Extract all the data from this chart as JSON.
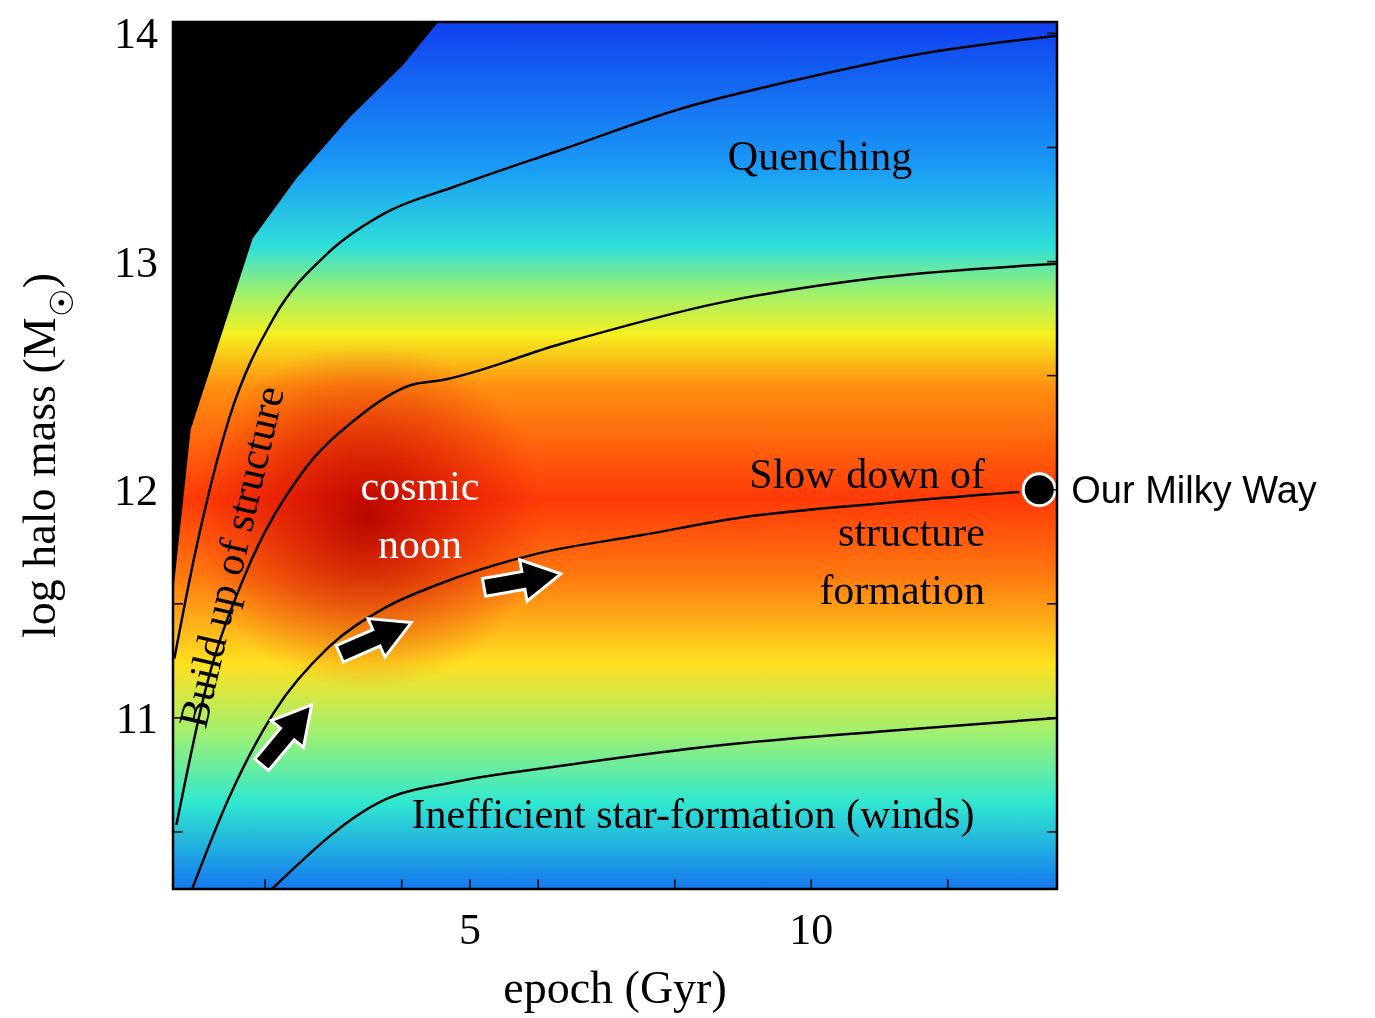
{
  "chart_data": {
    "type": "line",
    "xlabel": "epoch (Gyr)",
    "ylabel": "log halo mass (M$_{☉}$)",
    "xlim": [
      0.65,
      13.6
    ],
    "ylim": [
      10.25,
      14.05
    ],
    "xticks": [
      {
        "value": 2,
        "label": null
      },
      {
        "value": 4,
        "label": null
      },
      5,
      {
        "value": 6,
        "label": null
      },
      {
        "value": 8,
        "label": null
      },
      10,
      {
        "value": 12,
        "label": null
      }
    ],
    "yticks": [
      {
        "value": 10.5,
        "label": null
      },
      11,
      {
        "value": 11.5,
        "label": null
      },
      12,
      {
        "value": 12.5,
        "label": null
      },
      13,
      {
        "value": 13.5,
        "label": null
      },
      14
    ],
    "grid": false,
    "marker": "none",
    "line_style": "solid",
    "series": [
      {
        "color": "#000000",
        "x": [
          0.67,
          0.98,
          1.47,
          2.12,
          2.93,
          3.74,
          4.79,
          6.34,
          8.09,
          9.84,
          11.59,
          13.6
        ],
        "values": [
          11.26,
          11.73,
          12.31,
          12.75,
          13.04,
          13.21,
          13.33,
          13.49,
          13.67,
          13.8,
          13.91,
          13.99
        ]
      },
      {
        "color": "#000000",
        "x": [
          0.7,
          1.14,
          1.71,
          2.53,
          3.33,
          4.15,
          4.58,
          6.34,
          8.67,
          11.01,
          13.6
        ],
        "values": [
          10.53,
          11.14,
          11.63,
          12.07,
          12.31,
          12.46,
          12.48,
          12.64,
          12.82,
          12.93,
          12.99
        ]
      },
      {
        "color": "#000000",
        "x": [
          0.93,
          1.47,
          2.12,
          2.93,
          3.74,
          4.58,
          5.99,
          7.5,
          9.02,
          11.01,
          13.05
        ],
        "values": [
          10.25,
          10.65,
          11.02,
          11.31,
          11.48,
          11.59,
          11.72,
          11.8,
          11.88,
          11.94,
          11.99
        ]
      },
      {
        "color": "#000000",
        "x": [
          2.1,
          3.74,
          4.79,
          6.34,
          8.67,
          11.01,
          13.6
        ],
        "values": [
          10.25,
          10.64,
          10.72,
          10.79,
          10.88,
          10.94,
          11.0
        ]
      },
      {
        "type": "scatter",
        "marker": "circle",
        "color": "#000000",
        "x": [
          13.34
        ],
        "values": [
          12.0
        ]
      }
    ],
    "annotations": [
      "Quenching",
      "Build up of structure",
      "cosmic noon",
      "Slow down of structure formation",
      "Inefficient star-formation (winds)",
      {
        "text": "Our Milky Way",
        "x": 13.34,
        "y": 12.0
      }
    ]
  }
}
